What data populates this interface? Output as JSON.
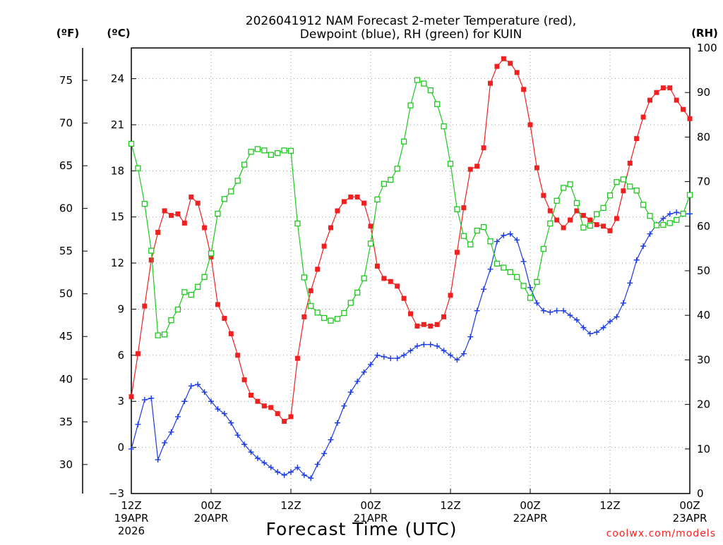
{
  "chart_data": {
    "type": "line",
    "title_line1": "2026041912 NAM Forecast 2-meter Temperature (red),",
    "title_line2": "Dewpoint (blue), RH (green) for KUIN",
    "xlabel": "Forecast Time (UTC)",
    "credit": "coolwx.com/models",
    "units": {
      "fahrenheit": "(ºF)",
      "celsius": "(ºC)",
      "rh": "(RH)"
    },
    "celsius_axis": {
      "range": [
        -3,
        26
      ],
      "ticks": [
        "-3",
        "0",
        "3",
        "6",
        "9",
        "12",
        "15",
        "18",
        "21",
        "24"
      ]
    },
    "fahrenheit_axis": {
      "ticks": [
        "30",
        "35",
        "40",
        "45",
        "50",
        "55",
        "60",
        "65",
        "70",
        "75"
      ]
    },
    "rh_axis": {
      "range": [
        0,
        100
      ],
      "ticks": [
        "0",
        "10",
        "20",
        "30",
        "40",
        "50",
        "60",
        "70",
        "80",
        "90",
        "100"
      ]
    },
    "x_axis": {
      "range_hours": [
        0,
        84
      ],
      "ticks": [
        {
          "hour": 0,
          "lines": [
            "12Z",
            "19APR",
            "2026"
          ]
        },
        {
          "hour": 12,
          "lines": [
            "00Z",
            "20APR"
          ]
        },
        {
          "hour": 24,
          "lines": [
            "12Z"
          ]
        },
        {
          "hour": 36,
          "lines": [
            "00Z",
            "21APR"
          ]
        },
        {
          "hour": 48,
          "lines": [
            "12Z"
          ]
        },
        {
          "hour": 60,
          "lines": [
            "00Z",
            "22APR"
          ]
        },
        {
          "hour": 72,
          "lines": [
            "12Z"
          ]
        },
        {
          "hour": 84,
          "lines": [
            "00Z",
            "23APR"
          ]
        }
      ]
    },
    "grid": true,
    "colors": {
      "temperature": "#ee2020",
      "dewpoint": "#1a3ae6",
      "rh": "#1ec81e"
    },
    "series": [
      {
        "name": "Temperature",
        "unit": "°C",
        "marker": "square",
        "values": [
          3.3,
          6.1,
          9.2,
          12.2,
          14.0,
          15.4,
          15.1,
          15.2,
          14.6,
          16.3,
          15.9,
          14.3,
          12.4,
          9.3,
          8.4,
          7.4,
          6.0,
          4.4,
          3.4,
          3.0,
          2.7,
          2.6,
          2.2,
          1.7,
          2.0,
          5.8,
          8.5,
          10.2,
          11.6,
          13.1,
          14.3,
          15.4,
          16.0,
          16.3,
          16.3,
          15.9,
          14.4,
          11.8,
          11.0,
          10.8,
          10.5,
          9.7,
          8.7,
          7.9,
          8.0,
          7.9,
          8.0,
          8.5,
          9.9,
          12.7,
          15.6,
          18.1,
          18.3,
          19.5,
          23.7,
          24.8,
          25.3,
          25.0,
          24.4,
          23.3,
          21.0,
          18.2,
          16.4,
          15.4,
          14.8,
          14.3,
          14.8,
          15.4,
          15.1,
          14.8,
          14.5,
          14.4,
          14.1,
          14.9,
          16.7,
          18.5,
          20.1,
          21.5,
          22.6,
          23.1,
          23.4,
          23.4,
          22.6,
          22.0,
          21.4
        ]
      },
      {
        "name": "Dewpoint",
        "unit": "°C",
        "marker": "plus",
        "values": [
          -0.1,
          1.5,
          3.1,
          3.2,
          -0.8,
          0.3,
          1.0,
          2.0,
          3.0,
          4.0,
          4.1,
          3.6,
          3.0,
          2.5,
          2.2,
          1.6,
          0.8,
          0.2,
          -0.3,
          -0.7,
          -1.0,
          -1.3,
          -1.6,
          -1.8,
          -1.6,
          -1.3,
          -1.8,
          -2.0,
          -1.1,
          -0.4,
          0.5,
          1.6,
          2.7,
          3.6,
          4.3,
          4.9,
          5.4,
          6.0,
          5.9,
          5.8,
          5.8,
          6.0,
          6.3,
          6.6,
          6.7,
          6.7,
          6.6,
          6.3,
          6.0,
          5.7,
          6.1,
          7.2,
          8.9,
          10.3,
          11.6,
          13.4,
          13.8,
          13.9,
          13.5,
          12.1,
          10.4,
          9.4,
          8.9,
          8.8,
          8.9,
          8.9,
          8.6,
          8.3,
          7.8,
          7.4,
          7.5,
          7.8,
          8.2,
          8.5,
          9.4,
          10.7,
          12.2,
          13.1,
          13.9,
          14.5,
          14.9,
          15.2,
          15.3,
          15.2,
          15.2
        ]
      },
      {
        "name": "RH",
        "unit": "%",
        "marker": "open-square",
        "values": [
          78.5,
          73.0,
          65.0,
          54.5,
          35.5,
          35.7,
          38.9,
          41.3,
          45.2,
          44.6,
          46.4,
          48.6,
          53.9,
          62.8,
          66.1,
          67.8,
          70.2,
          73.8,
          76.7,
          77.3,
          77.0,
          76.0,
          76.4,
          77.0,
          76.9,
          60.6,
          48.5,
          42.1,
          40.6,
          39.4,
          38.8,
          39.2,
          40.5,
          42.8,
          45.1,
          48.3,
          56.1,
          66.0,
          69.5,
          70.4,
          72.9,
          79.0,
          87.1,
          92.8,
          92.0,
          90.5,
          87.4,
          82.4,
          74.0,
          63.8,
          57.8,
          55.9,
          59.0,
          59.8,
          56.6,
          51.6,
          50.7,
          49.7,
          48.6,
          46.6,
          43.9,
          47.5,
          54.9,
          60.6,
          65.7,
          68.6,
          69.4,
          65.2,
          59.7,
          60.1,
          62.7,
          64.1,
          66.9,
          69.9,
          70.5,
          68.9,
          68.0,
          64.8,
          62.3,
          60.2,
          60.3,
          60.7,
          61.4,
          62.8,
          67.0
        ]
      }
    ]
  }
}
